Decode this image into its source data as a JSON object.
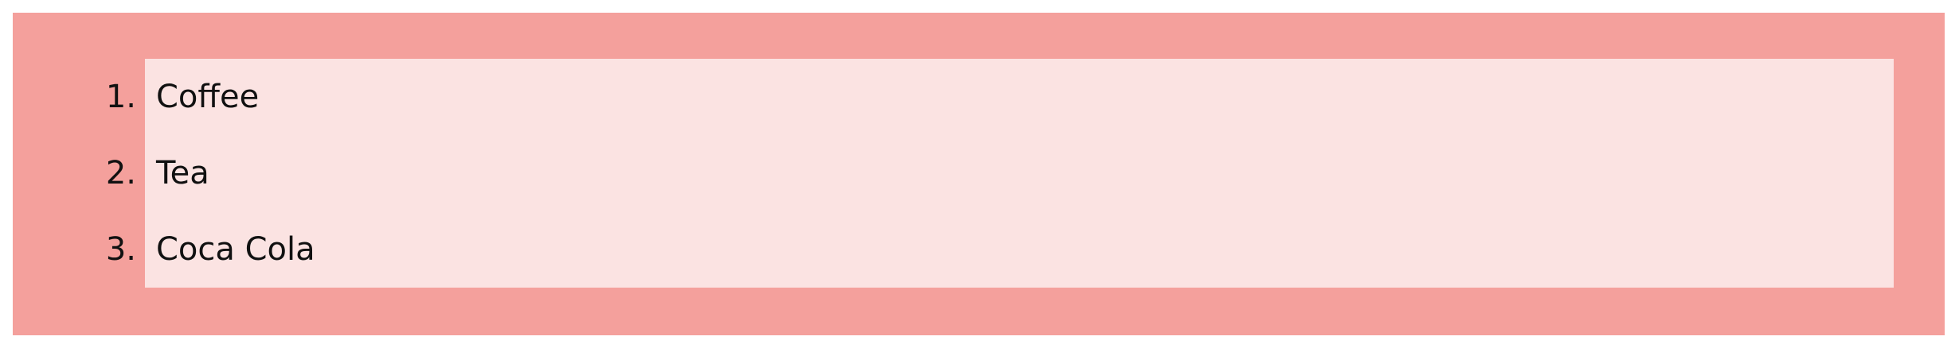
{
  "colors": {
    "outer_background": "#f4a09c",
    "list_background": "#fbe3e2",
    "text": "#111111"
  },
  "ordered_list": {
    "items": [
      {
        "number": "1.",
        "label": "Coffee"
      },
      {
        "number": "2.",
        "label": "Tea"
      },
      {
        "number": "3.",
        "label": "Coca Cola"
      }
    ]
  }
}
